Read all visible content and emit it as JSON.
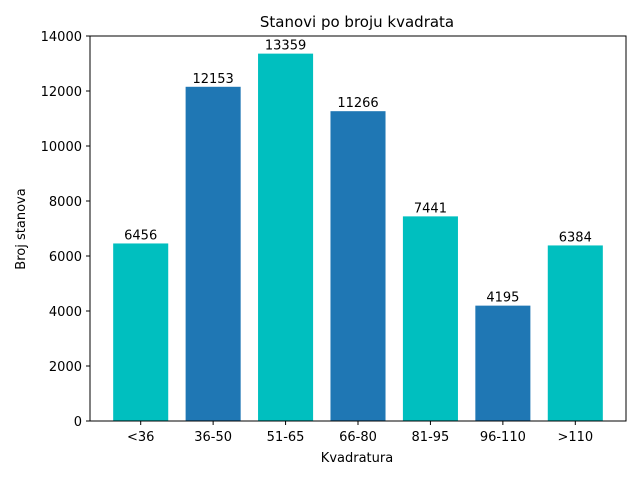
{
  "chart_data": {
    "type": "bar",
    "title": "Stanovi po broju kvadrata",
    "xlabel": "Kvadratura",
    "ylabel": "Broj stanova",
    "categories": [
      "<36",
      "36-50",
      "51-65",
      "66-80",
      "81-95",
      "96-110",
      ">110"
    ],
    "values": [
      6456,
      12153,
      13359,
      11266,
      7441,
      4195,
      6384
    ],
    "colors": [
      "#00bfbf",
      "#1f77b4",
      "#00bfbf",
      "#1f77b4",
      "#00bfbf",
      "#1f77b4",
      "#00bfbf"
    ],
    "ylim": [
      0,
      14000
    ],
    "yticks": [
      0,
      2000,
      4000,
      6000,
      8000,
      10000,
      12000,
      14000
    ],
    "grid": false,
    "legend": "none"
  }
}
